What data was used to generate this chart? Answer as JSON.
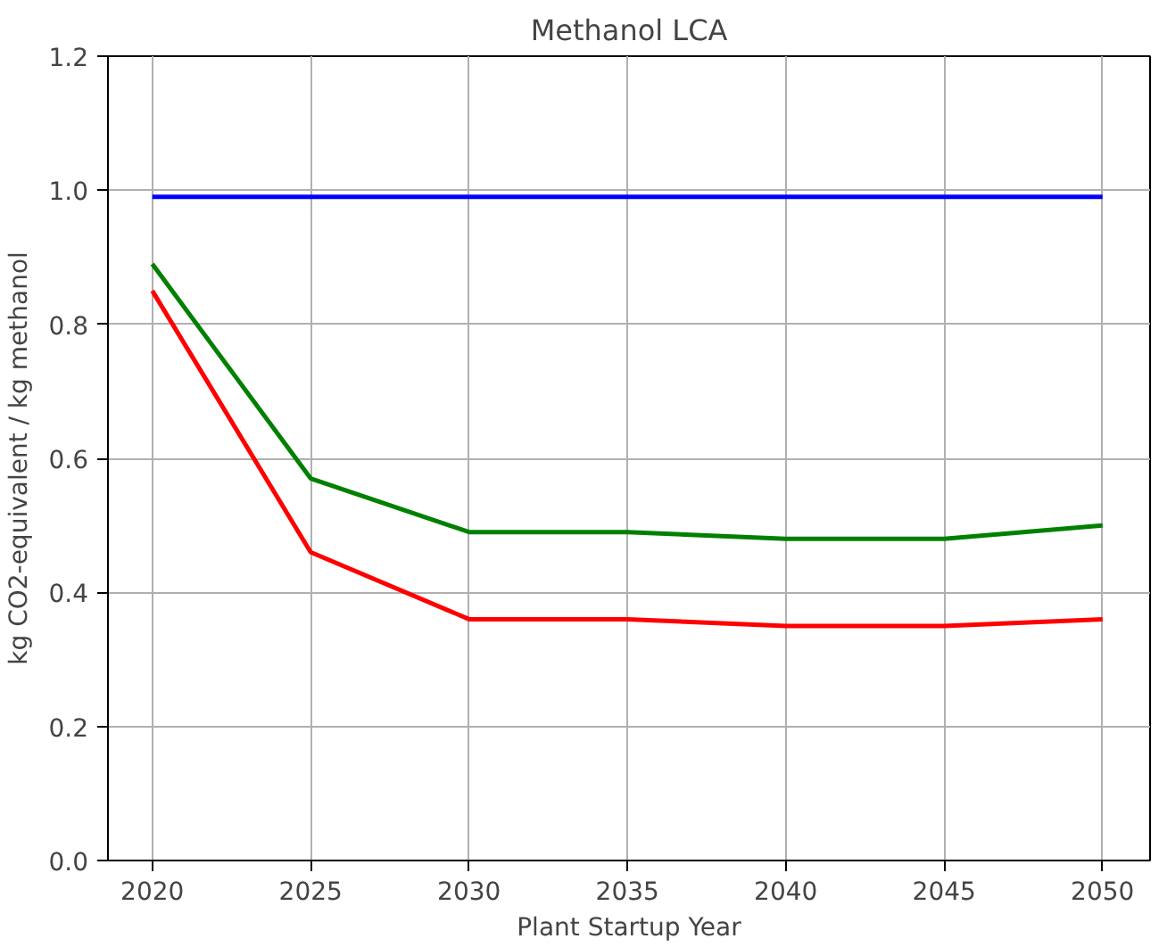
{
  "chart_data": {
    "type": "line",
    "title": "Methanol LCA",
    "xlabel": "Plant Startup Year",
    "ylabel": "kg CO2-equivalent / kg methanol",
    "x": [
      2020,
      2025,
      2030,
      2035,
      2040,
      2045,
      2050
    ],
    "series": [
      {
        "color": "#0000ff",
        "values": [
          0.99,
          0.99,
          0.99,
          0.99,
          0.99,
          0.99,
          0.99
        ]
      },
      {
        "color": "#008000",
        "values": [
          0.89,
          0.57,
          0.49,
          0.49,
          0.48,
          0.48,
          0.5
        ]
      },
      {
        "color": "#ff0000",
        "values": [
          0.85,
          0.46,
          0.36,
          0.36,
          0.35,
          0.35,
          0.36
        ]
      }
    ],
    "xlim": [
      2018.6,
      2051.5
    ],
    "ylim": [
      0,
      1.2
    ],
    "xticks": [
      2020,
      2025,
      2030,
      2035,
      2040,
      2045,
      2050
    ],
    "yticks": [
      {
        "value": 0,
        "label": "0.0"
      },
      0.2,
      0.4,
      0.6,
      0.8,
      {
        "value": 1,
        "label": "1.0"
      },
      1.2
    ],
    "grid": true,
    "marker": "none",
    "line_style": "solid"
  }
}
